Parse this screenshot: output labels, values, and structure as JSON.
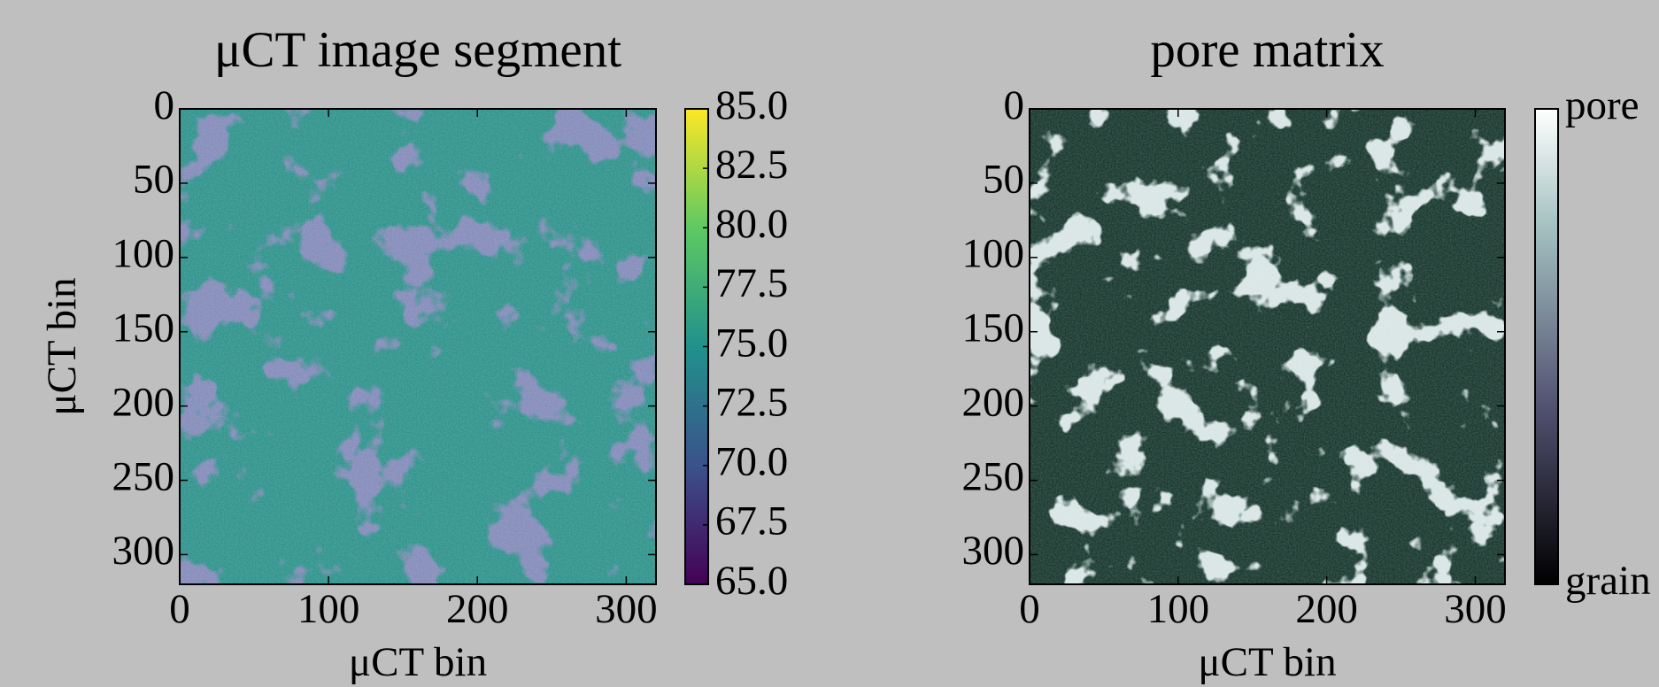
{
  "chart_data": [
    {
      "type": "heatmap",
      "title": "μCT image segment",
      "xlabel": "μCT bin",
      "ylabel": "μCT bin",
      "xlim": [
        0,
        320
      ],
      "xticks": [
        0,
        100,
        200,
        300
      ],
      "ylim": [
        0,
        320
      ],
      "yinvert": true,
      "yticks": [
        0,
        50,
        100,
        150,
        200,
        250,
        300
      ],
      "colormap": "viridis",
      "colorbar": {
        "lim": [
          65,
          85
        ],
        "ticks": [
          {
            "value": 65,
            "label": "65.0"
          },
          {
            "value": 67.5,
            "label": "67.5"
          },
          {
            "value": 70,
            "label": "70.0"
          },
          {
            "value": 72.5,
            "label": "72.5"
          },
          {
            "value": 75,
            "label": "75.0"
          },
          {
            "value": 77.5,
            "label": "77.5"
          },
          {
            "value": 80,
            "label": "80.0"
          },
          {
            "value": 82.5,
            "label": "82.5"
          },
          {
            "value": 85,
            "label": "85.0"
          }
        ]
      }
    },
    {
      "type": "heatmap",
      "title": "pore matrix",
      "xlabel": "μCT bin",
      "xlim": [
        0,
        320
      ],
      "xticks": [
        0,
        100,
        200,
        300
      ],
      "ylim": [
        0,
        320
      ],
      "yinvert": true,
      "yticks": [
        0,
        50,
        100,
        150,
        200,
        250,
        300
      ],
      "colormap": "bone",
      "colorbar": {
        "lim": [
          0,
          1
        ],
        "ticks": [
          {
            "value": 0,
            "label": "grain"
          },
          {
            "value": 1,
            "label": "pore"
          }
        ]
      }
    }
  ]
}
